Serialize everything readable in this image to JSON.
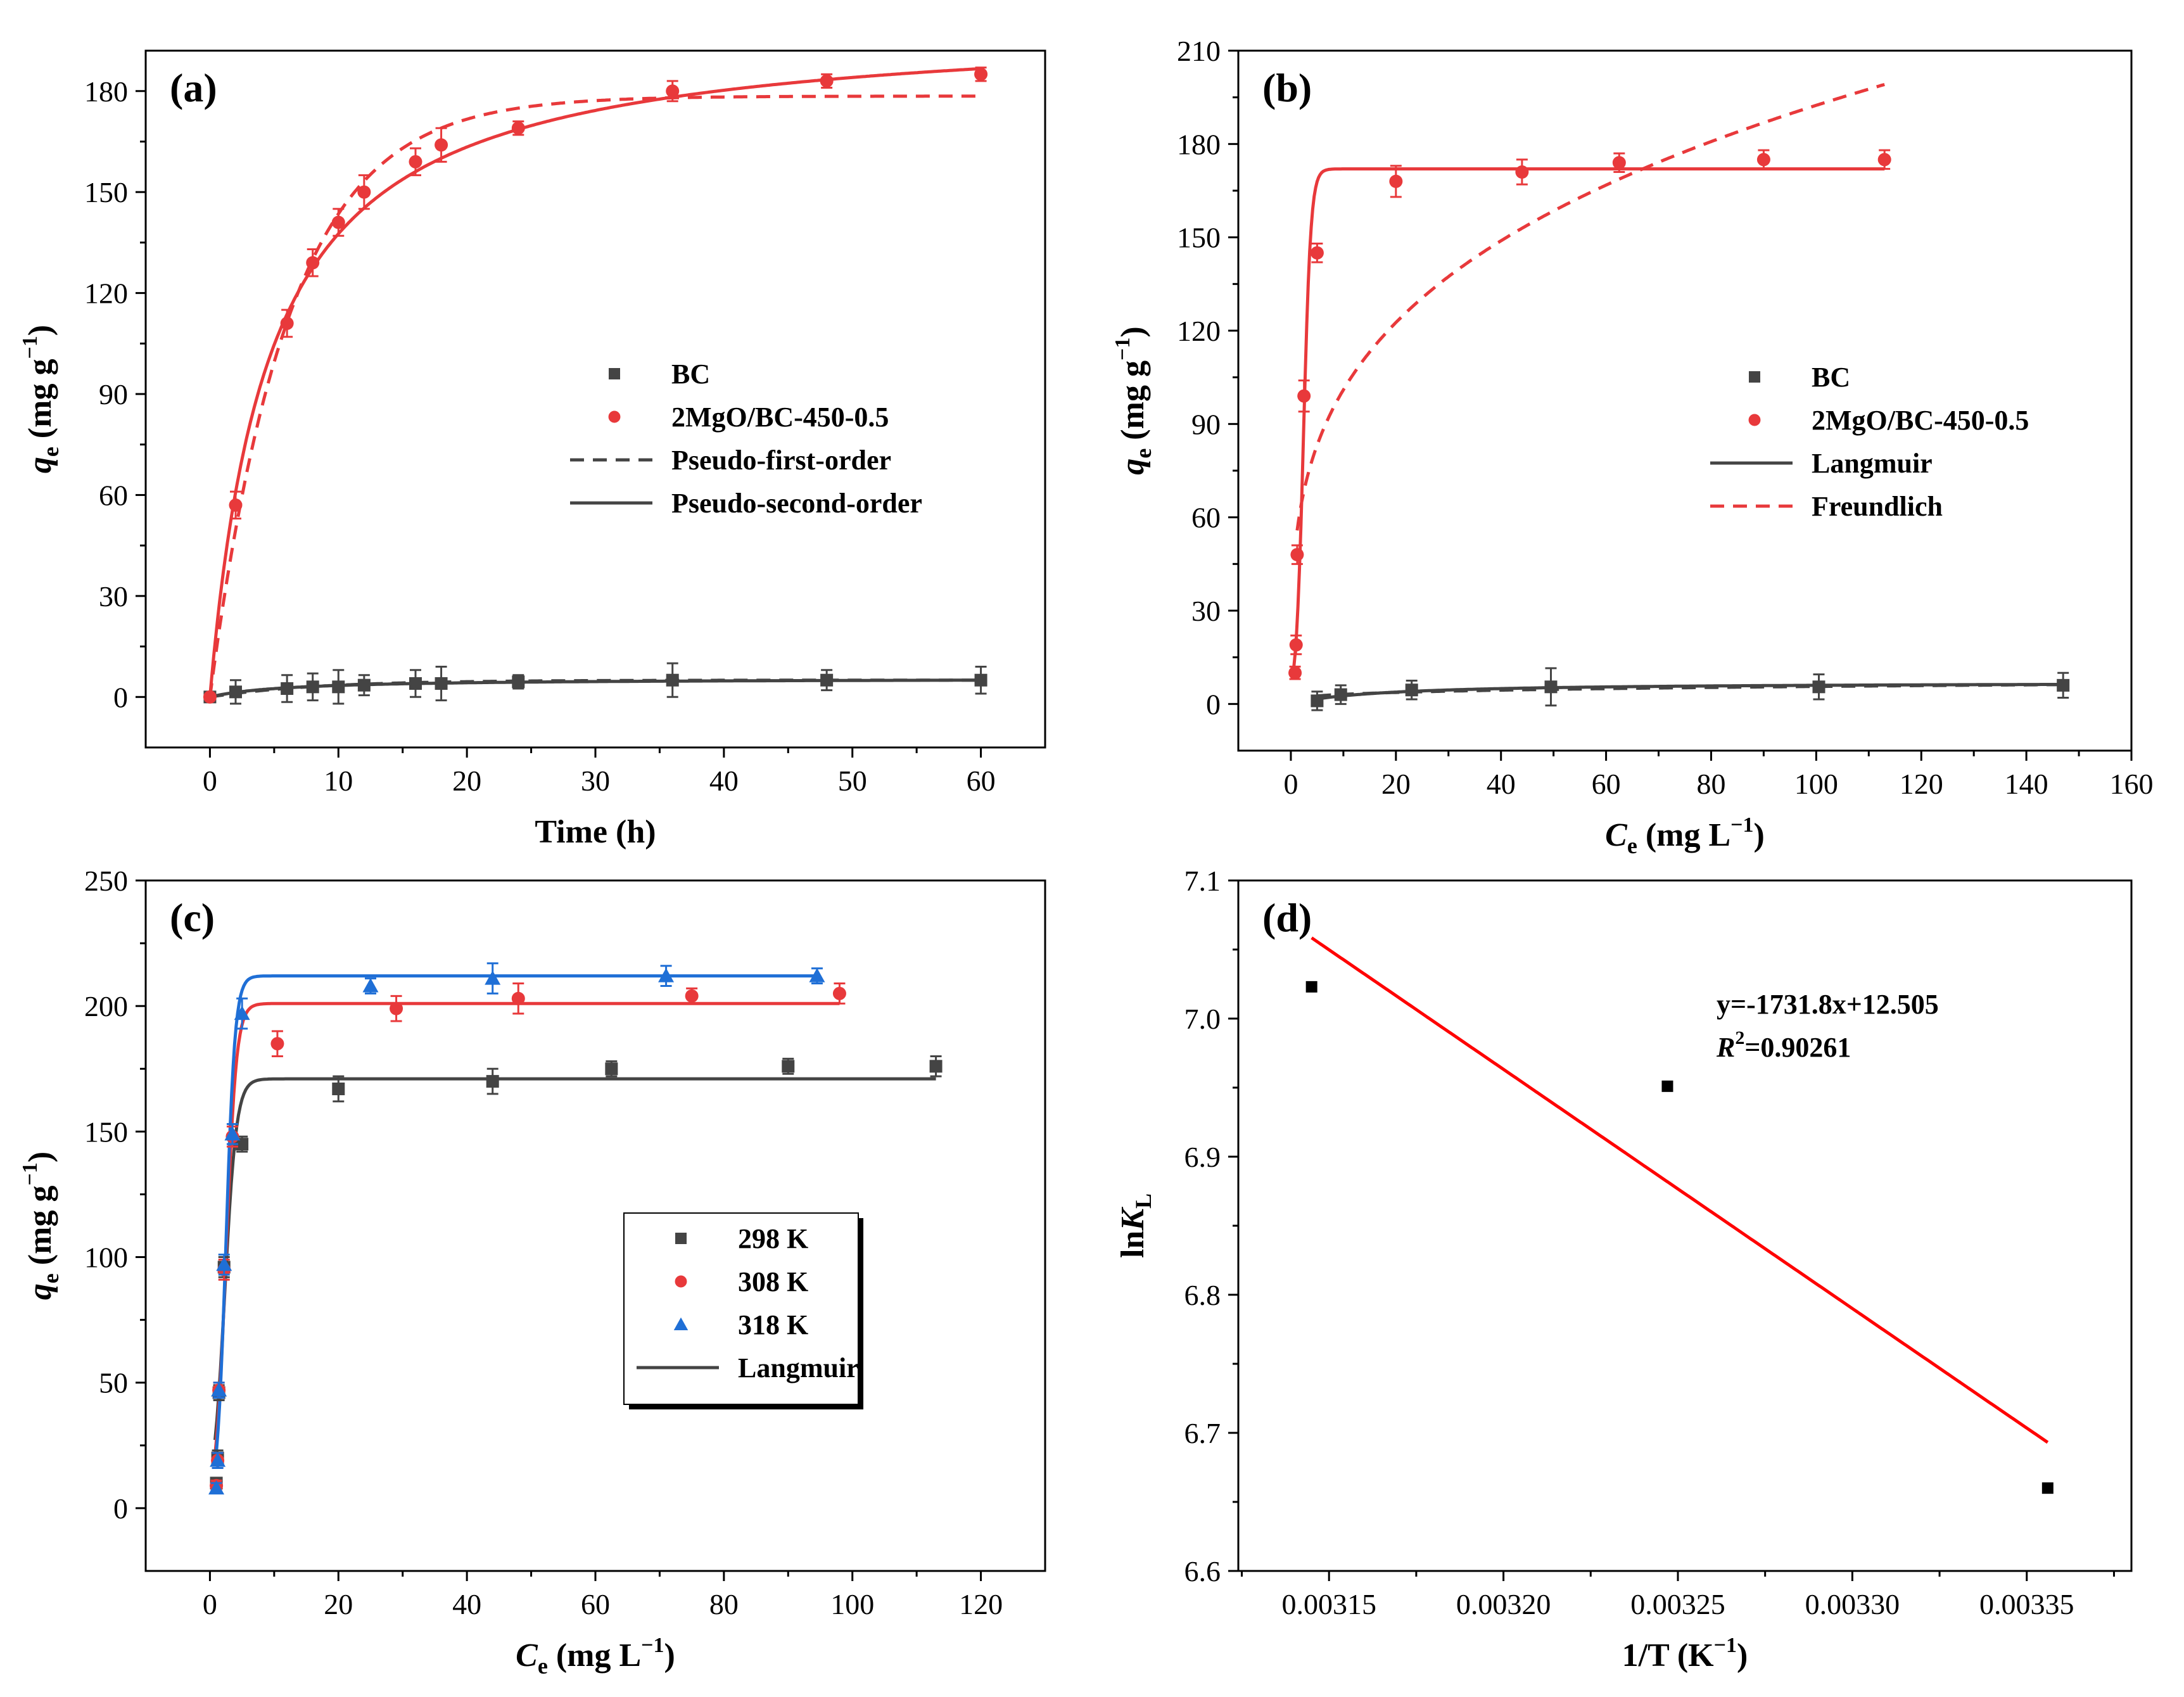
{
  "figure": {
    "colors": {
      "bc": "#444444",
      "mgo": "#e8393b",
      "k298": "#444444",
      "k308": "#e8393b",
      "k318": "#1f6fd6",
      "fit_d": "#ff0000",
      "axis": "#000000"
    }
  },
  "chart_data": [
    {
      "id": "a",
      "type": "scatter",
      "panel_label": "(a)",
      "xlabel": "Time (h)",
      "ylabel_q": "q",
      "ylabel_sub": "e",
      "ylabel_unit": " (mg g",
      "ylabel_sup": "−1",
      "ylabel_close": ")",
      "xlim": [
        -5,
        65
      ],
      "ylim": [
        -15,
        192
      ],
      "xticks": [
        0,
        10,
        20,
        30,
        40,
        50,
        60
      ],
      "yticks": [
        0,
        30,
        60,
        90,
        120,
        150,
        180
      ],
      "legend": {
        "position": "center-right",
        "entries": [
          {
            "label": "BC",
            "kind": "square",
            "color_key": "bc"
          },
          {
            "label": "2MgO/BC-450-0.5",
            "kind": "circle",
            "color_key": "mgo"
          },
          {
            "label": "Pseudo-first-order",
            "kind": "dash",
            "color_key": "bc"
          },
          {
            "label": "Pseudo-second-order",
            "kind": "line",
            "color_key": "bc"
          }
        ]
      },
      "series": [
        {
          "name": "BC",
          "marker": "square",
          "color_key": "bc",
          "x": [
            0,
            2,
            6,
            8,
            10,
            12,
            16,
            18,
            24,
            36,
            48,
            60
          ],
          "y": [
            0,
            1.5,
            2.5,
            3,
            3,
            3.5,
            4,
            4,
            4.5,
            5,
            5,
            5
          ],
          "err": [
            0,
            3.5,
            4,
            4,
            5,
            3,
            4,
            5,
            2,
            5,
            3,
            4
          ]
        },
        {
          "name": "2MgO/BC-450-0.5",
          "marker": "circle",
          "color_key": "mgo",
          "x": [
            0,
            2,
            6,
            8,
            10,
            12,
            16,
            18,
            24,
            36,
            48,
            60
          ],
          "y": [
            0,
            57,
            111,
            129,
            141,
            150,
            159,
            164,
            169,
            180,
            183,
            185
          ],
          "err": [
            0,
            4,
            4,
            4,
            4,
            5,
            4,
            5,
            2,
            3,
            2,
            2
          ]
        }
      ],
      "fits": [
        {
          "name": "Pseudo-first-order 2MgO/BC-450-0.5",
          "model": "pfo",
          "qe": 178.5,
          "k": 0.163,
          "x_range": [
            0,
            60
          ],
          "style": "dash",
          "color_key": "mgo"
        },
        {
          "name": "Pseudo-second-order 2MgO/BC-450-0.5",
          "model": "pso",
          "qe": 201,
          "k": 0.00108,
          "x_range": [
            0,
            60
          ],
          "style": "solid",
          "color_key": "mgo"
        },
        {
          "name": "Pseudo-first-order BC",
          "model": "pfo",
          "qe": 5.0,
          "k": 0.12,
          "x_range": [
            0,
            60
          ],
          "style": "dash",
          "color_key": "bc"
        },
        {
          "name": "Pseudo-second-order BC",
          "model": "pso",
          "qe": 5.5,
          "k": 0.03,
          "x_range": [
            0,
            60
          ],
          "style": "solid",
          "color_key": "bc"
        }
      ]
    },
    {
      "id": "b",
      "type": "scatter",
      "panel_label": "(b)",
      "xlabel_c": "C",
      "xlabel_sub": "e",
      "xlabel_unit": " (mg L",
      "xlabel_sup": "−1",
      "xlabel_close": ")",
      "ylabel_q": "q",
      "ylabel_sub": "e",
      "ylabel_unit": " (mg g",
      "ylabel_sup": "−1",
      "ylabel_close": ")",
      "xlim": [
        -10,
        160
      ],
      "ylim": [
        -15,
        210
      ],
      "xticks": [
        0,
        20,
        40,
        60,
        80,
        100,
        120,
        140,
        160
      ],
      "yticks": [
        0,
        30,
        60,
        90,
        120,
        150,
        180,
        210
      ],
      "legend": {
        "position": "center-right",
        "entries": [
          {
            "label": "BC",
            "kind": "square",
            "color_key": "bc"
          },
          {
            "label": "2MgO/BC-450-0.5",
            "kind": "circle",
            "color_key": "mgo"
          },
          {
            "label": "Langmuir",
            "kind": "line",
            "color_key": "bc"
          },
          {
            "label": "Freundlich",
            "kind": "dash",
            "color_key": "mgo"
          }
        ]
      },
      "series": [
        {
          "name": "BC",
          "marker": "square",
          "color_key": "bc",
          "x": [
            5,
            9.5,
            23,
            49.5,
            100.5,
            147
          ],
          "y": [
            1,
            3,
            4.5,
            5.5,
            5.5,
            6
          ],
          "err": [
            3,
            3,
            3,
            6,
            4,
            4
          ]
        },
        {
          "name": "2MgO/BC-450-0.5",
          "marker": "circle",
          "color_key": "mgo",
          "x": [
            0.8,
            1.0,
            1.2,
            2.5,
            5,
            20,
            44,
            62.5,
            90,
            113
          ],
          "y": [
            10,
            19,
            48,
            99,
            145,
            168,
            171,
            174,
            175,
            175
          ],
          "err": [
            2,
            3,
            3,
            5,
            3,
            5,
            4,
            3,
            3,
            3
          ]
        }
      ],
      "fits": [
        {
          "name": "Langmuir 2MgO/BC-450-0.5",
          "model": "sigmoid",
          "qmax": 172,
          "c0": 2.4,
          "w": 0.7,
          "x_range": [
            0.5,
            113
          ],
          "style": "solid",
          "color_key": "mgo"
        },
        {
          "name": "Freundlich 2MgO/BC-450-0.5",
          "model": "freundlich",
          "kf": 53,
          "n": 0.28,
          "x_range": [
            1.2,
            113
          ],
          "style": "dash",
          "color_key": "mgo"
        },
        {
          "name": "Langmuir BC",
          "model": "langmuir",
          "qmax": 7,
          "kl": 0.06,
          "x_range": [
            5,
            147
          ],
          "style": "solid",
          "color_key": "bc"
        },
        {
          "name": "Freundlich BC",
          "model": "freundlich",
          "kf": 1.7,
          "n": 0.26,
          "x_range": [
            5,
            147
          ],
          "style": "dash",
          "color_key": "bc"
        }
      ]
    },
    {
      "id": "c",
      "type": "scatter",
      "panel_label": "(c)",
      "xlabel_c": "C",
      "xlabel_sub": "e",
      "xlabel_unit": " (mg L",
      "xlabel_sup": "−1",
      "xlabel_close": ")",
      "ylabel_q": "q",
      "ylabel_sub": "e",
      "ylabel_unit": " (mg g",
      "ylabel_sup": "−1",
      "ylabel_close": ")",
      "xlim": [
        -10,
        130
      ],
      "ylim": [
        -25,
        250
      ],
      "xticks": [
        0,
        20,
        40,
        60,
        80,
        100,
        120
      ],
      "yticks": [
        0,
        50,
        100,
        150,
        200,
        250
      ],
      "legend": {
        "position": "center",
        "entries": [
          {
            "label": "298 K",
            "kind": "square",
            "color_key": "k298"
          },
          {
            "label": "308 K",
            "kind": "circle",
            "color_key": "k308"
          },
          {
            "label": "318 K",
            "kind": "triangle",
            "color_key": "k318"
          },
          {
            "label": "Langmuir",
            "kind": "line",
            "color_key": "k298"
          }
        ]
      },
      "series": [
        {
          "name": "298 K",
          "marker": "square",
          "color_key": "k298",
          "x": [
            1,
            1.2,
            1.4,
            2.2,
            5,
            20,
            44,
            62.5,
            90,
            113
          ],
          "y": [
            10,
            20,
            46,
            96,
            145,
            167,
            170,
            175,
            176,
            176
          ],
          "err": [
            2,
            3,
            3,
            4,
            3,
            5,
            5,
            3,
            3,
            4
          ]
        },
        {
          "name": "308 K",
          "marker": "circle",
          "color_key": "k308",
          "x": [
            1,
            1.2,
            1.4,
            2.2,
            3.5,
            10.5,
            29,
            48,
            75,
            98
          ],
          "y": [
            9,
            19,
            47,
            95,
            148,
            185,
            199,
            203,
            204,
            205
          ],
          "err": [
            2,
            3,
            3,
            4,
            4,
            5,
            5,
            6,
            3,
            4
          ]
        },
        {
          "name": "318 K",
          "marker": "triangle",
          "color_key": "k318",
          "x": [
            1,
            1.2,
            1.4,
            2.2,
            3.5,
            5,
            25,
            44,
            71,
            94.5
          ],
          "y": [
            8,
            19,
            47,
            97,
            149,
            197,
            208,
            211,
            212,
            212
          ],
          "err": [
            2,
            3,
            3,
            4,
            4,
            6,
            3,
            6,
            4,
            3
          ]
        }
      ],
      "fits": [
        {
          "name": "Langmuir 298 K",
          "model": "sigmoid",
          "qmax": 171,
          "c0": 2.3,
          "w": 0.9,
          "x_range": [
            0.8,
            113
          ],
          "style": "solid",
          "color_key": "k298"
        },
        {
          "name": "Langmuir 308 K",
          "model": "sigmoid",
          "qmax": 201,
          "c0": 2.5,
          "w": 0.8,
          "x_range": [
            0.8,
            98
          ],
          "style": "solid",
          "color_key": "k308"
        },
        {
          "name": "Langmuir 318 K",
          "model": "sigmoid",
          "qmax": 212,
          "c0": 2.5,
          "w": 0.7,
          "x_range": [
            0.8,
            94.5
          ],
          "style": "solid",
          "color_key": "k318"
        }
      ]
    },
    {
      "id": "d",
      "type": "scatter",
      "panel_label": "(d)",
      "xlabel": "1/T (K−1)",
      "xlabel_main": "1/T (K",
      "xlabel_sup": "−1",
      "xlabel_close": ")",
      "ylabel_main": "ln",
      "ylabel_k": "K",
      "ylabel_sub": "L",
      "xlim": [
        0.003124,
        0.00338
      ],
      "ylim": [
        6.6,
        7.1
      ],
      "xticks": [
        0.00315,
        0.0032,
        0.00325,
        0.0033,
        0.00335
      ],
      "xtick_labels": [
        "0.00315",
        "0.00320",
        "0.00325",
        "0.00330",
        "0.00335"
      ],
      "yticks": [
        6.6,
        6.7,
        6.8,
        6.9,
        7.0,
        7.1
      ],
      "ytick_labels": [
        "6.6",
        "6.7",
        "6.8",
        "6.9",
        "7.0",
        "7.1"
      ],
      "series": [
        {
          "name": "lnKL",
          "marker": "square",
          "color_key": "axis",
          "x": [
            0.003145,
            0.003247,
            0.003356
          ],
          "y": [
            7.023,
            6.951,
            6.66
          ]
        }
      ],
      "fits": [
        {
          "name": "linear fit",
          "model": "linear",
          "slope": -1731.8,
          "intercept": 12.505,
          "x_range": [
            0.003145,
            0.003356
          ],
          "style": "solid",
          "color_key": "fit_d"
        }
      ],
      "annotation": {
        "equation": "y=-1731.8x+12.505",
        "r2_label": "R",
        "r2_sup": "2",
        "r2_value": "=0.90261"
      }
    }
  ]
}
